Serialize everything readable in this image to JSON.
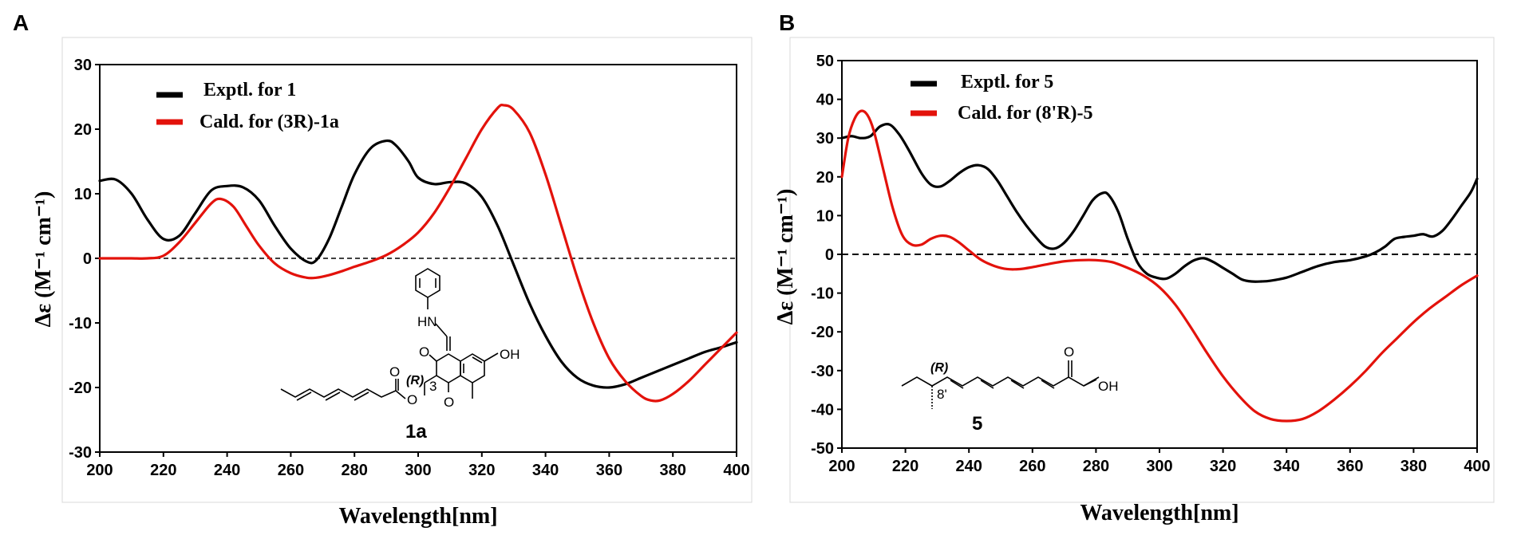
{
  "chart_data": [
    {
      "type": "line",
      "panel_label": "A",
      "xlabel": "Wavelength[nm]",
      "ylabel": "Δε (M⁻¹ cm⁻¹)",
      "xlim": [
        200,
        400
      ],
      "ylim": [
        -30,
        30
      ],
      "xticks": [
        200,
        220,
        240,
        260,
        280,
        300,
        320,
        340,
        360,
        380,
        400
      ],
      "yticks": [
        -30,
        -20,
        -10,
        0,
        10,
        20,
        30
      ],
      "zero_line": "dashed",
      "legend_position": "top-left",
      "series": [
        {
          "name": "Exptl. for 1",
          "color": "#000000",
          "x": [
            200,
            205,
            210,
            215,
            220,
            225,
            230,
            235,
            240,
            245,
            250,
            255,
            260,
            265,
            268,
            272,
            276,
            280,
            285,
            290,
            293,
            297,
            300,
            305,
            310,
            315,
            320,
            325,
            330,
            335,
            340,
            345,
            350,
            355,
            360,
            365,
            370,
            375,
            380,
            385,
            390,
            395,
            400
          ],
          "y": [
            12,
            12.2,
            10,
            6,
            3,
            3.5,
            7,
            10.5,
            11.2,
            11,
            9,
            5,
            1.5,
            -0.5,
            -0.3,
            3,
            8,
            13,
            17,
            18.2,
            17.5,
            15,
            12.5,
            11.5,
            11.8,
            11.6,
            9.5,
            5,
            -1,
            -7,
            -12,
            -16,
            -18.5,
            -19.7,
            -20,
            -19.5,
            -18.5,
            -17.5,
            -16.5,
            -15.5,
            -14.5,
            -13.8,
            -13
          ]
        },
        {
          "name": "Cald. for (3R)-1a",
          "color": "#e3120b",
          "x": [
            200,
            205,
            210,
            215,
            220,
            225,
            230,
            235,
            238,
            242,
            246,
            250,
            255,
            260,
            265,
            268,
            272,
            276,
            280,
            285,
            290,
            295,
            300,
            305,
            310,
            315,
            320,
            325,
            327,
            330,
            335,
            340,
            345,
            350,
            355,
            360,
            365,
            370,
            373,
            376,
            380,
            385,
            390,
            395,
            400
          ],
          "y": [
            0,
            0,
            0,
            0,
            0.4,
            2.5,
            5.5,
            8.5,
            9.2,
            8,
            5,
            2,
            -0.8,
            -2.3,
            -3,
            -3,
            -2.6,
            -2,
            -1.3,
            -0.5,
            0.5,
            2,
            4,
            7,
            11,
            15.5,
            20,
            23.3,
            23.7,
            23,
            19.5,
            13,
            5,
            -3,
            -10,
            -15.5,
            -19,
            -21.3,
            -22,
            -22,
            -21,
            -19,
            -16.5,
            -14,
            -11.5
          ]
        }
      ],
      "molecule": {
        "name": "1a",
        "stereo_label": "(R)",
        "atom_labels": [
          "HN",
          "OH",
          "O",
          "O",
          "O",
          "O"
        ],
        "position_label": "3"
      }
    },
    {
      "type": "line",
      "panel_label": "B",
      "xlabel": "Wavelength[nm]",
      "ylabel": "Δε (M⁻¹ cm⁻¹)",
      "xlim": [
        200,
        400
      ],
      "ylim": [
        -50,
        50
      ],
      "xticks": [
        200,
        220,
        240,
        260,
        280,
        300,
        320,
        340,
        360,
        380,
        400
      ],
      "yticks": [
        -50,
        -40,
        -30,
        -20,
        -10,
        0,
        10,
        20,
        30,
        40,
        50
      ],
      "zero_line": "dashed",
      "legend_position": "top-left",
      "series": [
        {
          "name": "Exptl. for 5",
          "color": "#000000",
          "x": [
            200,
            203,
            206,
            209,
            212,
            215,
            218,
            221,
            225,
            228,
            231,
            234,
            237,
            240,
            243,
            246,
            249,
            252,
            255,
            258,
            261,
            264,
            267,
            270,
            273,
            276,
            279,
            282,
            284,
            287,
            290,
            293,
            296,
            299,
            302,
            305,
            308,
            311,
            314,
            317,
            320,
            323,
            326,
            329,
            332,
            335,
            340,
            345,
            350,
            355,
            360,
            365,
            368,
            371,
            374,
            377,
            380,
            383,
            386,
            389,
            392,
            395,
            398,
            400
          ],
          "y": [
            30,
            30.5,
            30,
            30.5,
            33,
            33.5,
            31,
            27,
            21,
            18,
            17.5,
            19,
            21,
            22.5,
            23,
            22,
            19,
            15,
            11,
            7.5,
            4.5,
            2,
            1.5,
            3,
            6,
            10,
            14,
            15.8,
            15.3,
            11,
            4,
            -2,
            -5,
            -6,
            -6.3,
            -5,
            -3,
            -1.5,
            -1,
            -2,
            -3.5,
            -5,
            -6.5,
            -7,
            -7,
            -6.8,
            -6,
            -4.5,
            -3,
            -2,
            -1.5,
            -0.5,
            0.5,
            2,
            4,
            4.5,
            4.8,
            5.2,
            4.6,
            6,
            9,
            12.5,
            16,
            19.5
          ]
        },
        {
          "name": "Cald. for (8'R)-5",
          "color": "#e3120b",
          "x": [
            200,
            202,
            204,
            206,
            208,
            210,
            213,
            216,
            219,
            222,
            225,
            228,
            231,
            234,
            237,
            240,
            244,
            248,
            252,
            256,
            260,
            265,
            270,
            275,
            280,
            285,
            290,
            295,
            300,
            305,
            310,
            315,
            320,
            325,
            330,
            335,
            340,
            345,
            350,
            355,
            360,
            365,
            370,
            375,
            380,
            385,
            390,
            395,
            400
          ],
          "y": [
            20,
            30,
            35,
            37,
            36,
            32,
            22,
            12,
            5,
            2.5,
            2.5,
            4,
            4.8,
            4.5,
            3,
            1,
            -1.5,
            -3,
            -3.8,
            -3.8,
            -3.3,
            -2.5,
            -1.8,
            -1.5,
            -1.5,
            -2,
            -3.5,
            -5.5,
            -8.5,
            -13,
            -19,
            -25.5,
            -31.5,
            -36.5,
            -40.5,
            -42.5,
            -43,
            -42.5,
            -40.5,
            -37.5,
            -34,
            -30,
            -25.5,
            -21.5,
            -17.5,
            -14,
            -11,
            -8,
            -5.5
          ]
        }
      ],
      "molecule": {
        "name": "5",
        "stereo_label": "(R)",
        "position_label": "8'",
        "atom_labels": [
          "O",
          "OH"
        ]
      }
    }
  ]
}
